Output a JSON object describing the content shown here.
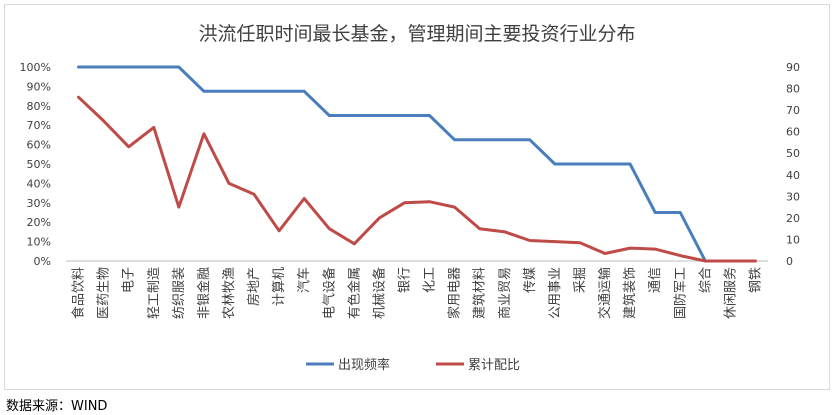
{
  "chart_data": {
    "type": "line",
    "title": "洪流任职时间最长基金，管理期间主要投资行业分布",
    "categories": [
      "食品饮料",
      "医药生物",
      "电子",
      "轻工制造",
      "纺织服装",
      "非银金融",
      "农林牧渔",
      "房地产",
      "计算机",
      "汽车",
      "电气设备",
      "有色金属",
      "机械设备",
      "银行",
      "化工",
      "家用电器",
      "建筑材料",
      "商业贸易",
      "传媒",
      "公用事业",
      "采掘",
      "交通运输",
      "建筑装饰",
      "通信",
      "国防军工",
      "综合",
      "休闲服务",
      "钢铁"
    ],
    "series": [
      {
        "name": "出现频率",
        "axis": "left",
        "color": "#4a7ebb",
        "values": [
          100,
          100,
          100,
          100,
          100,
          87.5,
          87.5,
          87.5,
          87.5,
          87.5,
          75,
          75,
          75,
          75,
          75,
          62.5,
          62.5,
          62.5,
          62.5,
          50,
          50,
          50,
          50,
          25,
          25,
          0,
          null,
          null
        ]
      },
      {
        "name": "累计配比",
        "axis": "right",
        "color": "#be4b48",
        "values": [
          76,
          65,
          53,
          62,
          25,
          59,
          36,
          31,
          14,
          29,
          15,
          8,
          20,
          27,
          27.5,
          25,
          15,
          13.5,
          9.5,
          9,
          8.5,
          3.5,
          6,
          5.5,
          2.5,
          0,
          0,
          0
        ]
      }
    ],
    "y_left": {
      "min": 0,
      "max": 100,
      "step": 10,
      "suffix": "%"
    },
    "y_right": {
      "min": 0,
      "max": 90,
      "step": 10
    },
    "legend_position": "bottom",
    "grid": false
  },
  "source": "数据来源：WIND"
}
